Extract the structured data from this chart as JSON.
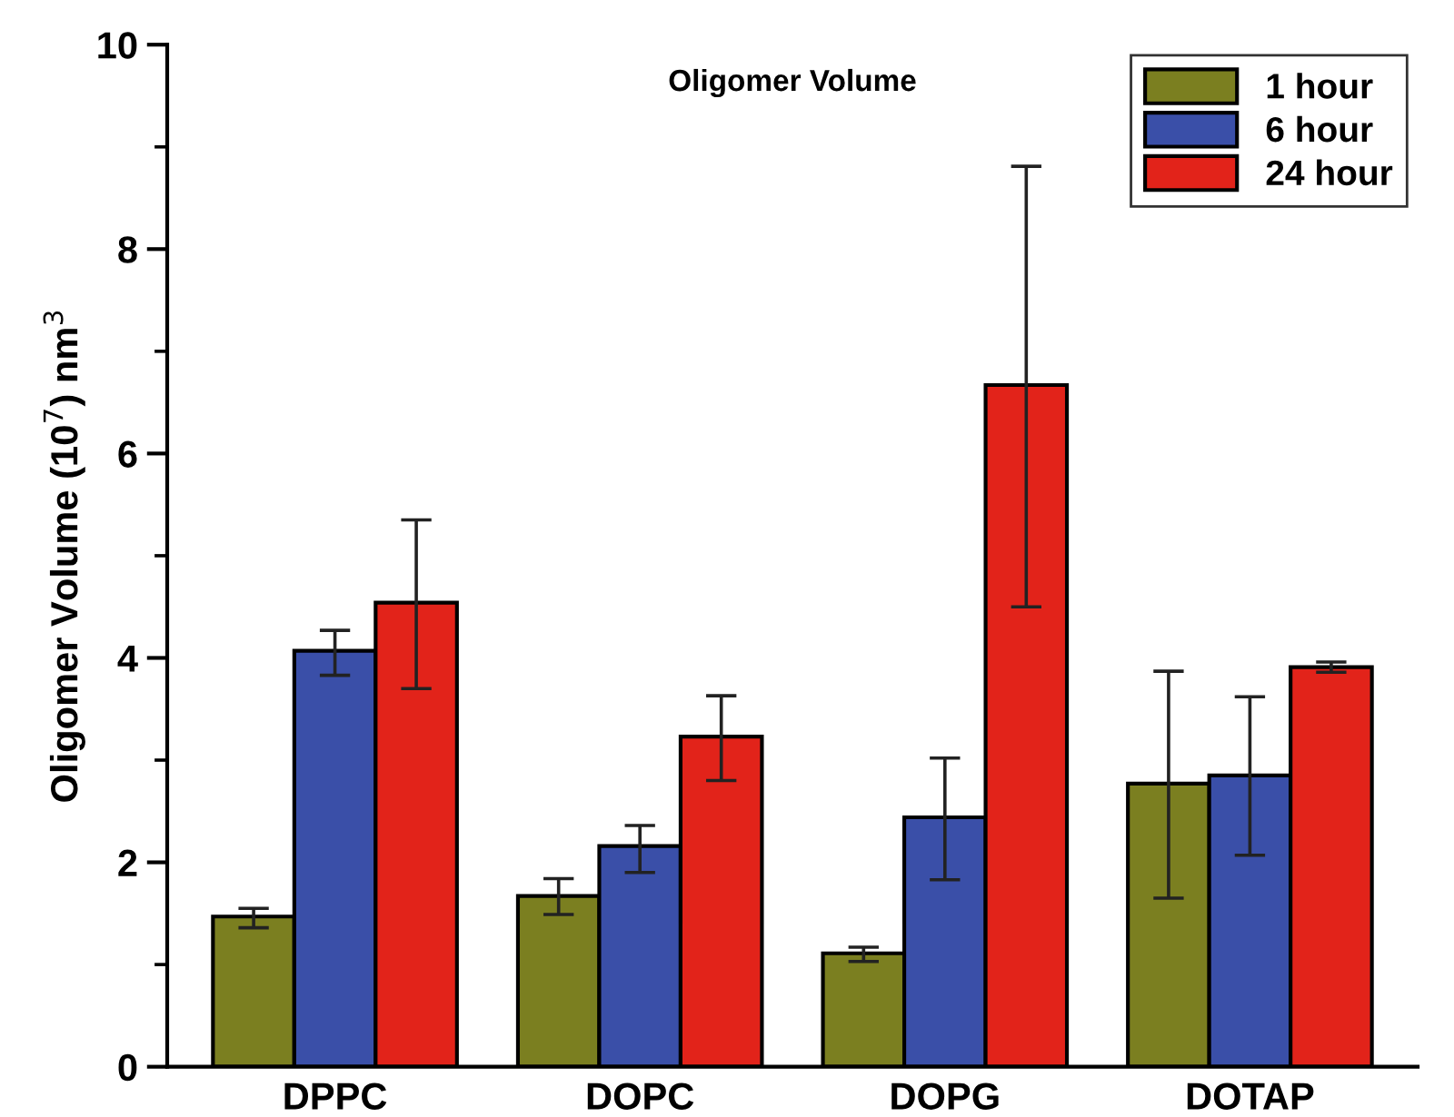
{
  "chart_data": {
    "type": "bar",
    "title": "Oligomer Volume",
    "ylabel": "Oligomer Volume (10$^{7}$) nm$^{3}$",
    "categories": [
      "DPPC",
      "DOPC",
      "DOPG",
      "DOTAP"
    ],
    "series": [
      {
        "name": "1 hour",
        "color": "#7b7f20",
        "values": [
          1.47,
          1.67,
          1.11,
          2.77
        ],
        "errors": [
          [
            1.36,
            1.55
          ],
          [
            1.49,
            1.84
          ],
          [
            1.03,
            1.17
          ],
          [
            1.65,
            3.87
          ]
        ]
      },
      {
        "name": "6 hour",
        "color": "#3a4fa8",
        "values": [
          4.07,
          2.16,
          2.44,
          2.85
        ],
        "errors": [
          [
            3.83,
            4.27
          ],
          [
            1.9,
            2.36
          ],
          [
            1.83,
            3.02
          ],
          [
            2.07,
            3.62
          ]
        ]
      },
      {
        "name": "24 hour",
        "color": "#e2231a",
        "values": [
          4.54,
          3.23,
          6.67,
          3.91
        ],
        "errors": [
          [
            3.7,
            5.35
          ],
          [
            2.8,
            3.63
          ],
          [
            4.5,
            8.81
          ],
          [
            3.86,
            3.96
          ]
        ]
      }
    ],
    "ylim": [
      0,
      10
    ],
    "yticks": [
      0,
      2,
      4,
      6,
      8,
      10
    ],
    "grid": false,
    "legend": "top right"
  }
}
